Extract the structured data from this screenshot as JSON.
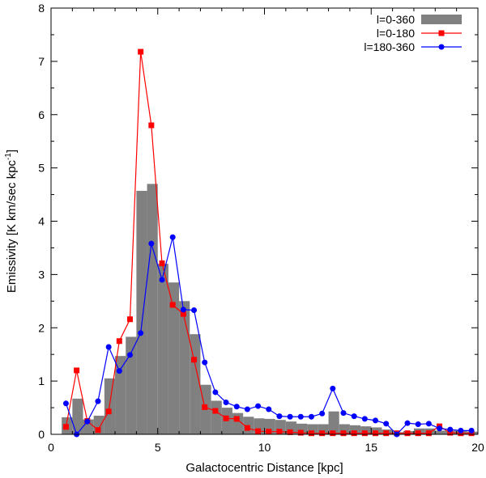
{
  "chart_data": {
    "type": "bar",
    "title": "",
    "xlabel": "Galactocentric Distance [kpc]",
    "ylabel_parts": {
      "main": "Emissivity [K km/sec kpc",
      "sup": "-1",
      "end": "]"
    },
    "xlim": [
      0,
      20
    ],
    "ylim": [
      0,
      8
    ],
    "x_ticks": [
      "0",
      "5",
      "10",
      "15",
      "20"
    ],
    "y_ticks": [
      "0",
      "1",
      "2",
      "3",
      "4",
      "5",
      "6",
      "7",
      "8"
    ],
    "grid": false,
    "legend_position": "top-right",
    "bin_width": 0.5,
    "series": [
      {
        "name": "l=0-360",
        "kind": "histogram",
        "color": "#808080",
        "x": [
          0.5,
          1.0,
          1.5,
          2.0,
          2.5,
          3.0,
          3.5,
          4.0,
          4.5,
          5.0,
          5.5,
          6.0,
          6.5,
          7.0,
          7.5,
          8.0,
          8.5,
          9.0,
          9.5,
          10.0,
          10.5,
          11.0,
          11.5,
          12.0,
          12.5,
          13.0,
          13.5,
          14.0,
          14.5,
          15.0,
          15.5,
          16.0,
          16.5,
          17.0,
          17.5,
          18.0,
          18.5,
          19.0,
          19.5
        ],
        "values": [
          0.32,
          0.67,
          0.28,
          0.35,
          1.05,
          1.47,
          1.83,
          4.57,
          4.7,
          3.2,
          2.85,
          2.5,
          1.88,
          0.93,
          0.63,
          0.5,
          0.4,
          0.33,
          0.3,
          0.29,
          0.27,
          0.24,
          0.2,
          0.19,
          0.19,
          0.43,
          0.19,
          0.17,
          0.15,
          0.13,
          0.09,
          0.04,
          0.06,
          0.11,
          0.11,
          0.07,
          0.07,
          0.07,
          0.05
        ]
      },
      {
        "name": "l=0-180",
        "kind": "line",
        "marker": "square",
        "color": "#ff0000",
        "x": [
          0.7,
          1.2,
          1.7,
          2.2,
          2.7,
          3.2,
          3.7,
          4.2,
          4.7,
          5.2,
          5.7,
          6.2,
          6.7,
          7.2,
          7.7,
          8.2,
          8.7,
          9.2,
          9.7,
          10.2,
          10.7,
          11.2,
          11.7,
          12.2,
          12.7,
          13.2,
          13.7,
          14.2,
          14.7,
          15.2,
          15.7,
          16.2,
          16.7,
          17.2,
          17.7,
          18.2,
          18.7,
          19.2,
          19.7
        ],
        "values": [
          0.14,
          1.2,
          0.25,
          0.08,
          0.43,
          1.75,
          2.16,
          7.18,
          5.8,
          3.21,
          2.43,
          2.26,
          1.4,
          0.51,
          0.44,
          0.3,
          0.29,
          0.12,
          0.06,
          0.05,
          0.05,
          0.04,
          0.03,
          0.02,
          0.02,
          0.02,
          0.02,
          0.02,
          0.02,
          0.02,
          0.02,
          0.02,
          0.02,
          0.02,
          0.02,
          0.15,
          0.03,
          0.02,
          0.02
        ]
      },
      {
        "name": "l=180-360",
        "kind": "line",
        "marker": "circle",
        "color": "#0000ff",
        "x": [
          0.7,
          1.2,
          1.7,
          2.2,
          2.7,
          3.2,
          3.7,
          4.2,
          4.7,
          5.2,
          5.7,
          6.2,
          6.7,
          7.2,
          7.7,
          8.2,
          8.7,
          9.2,
          9.7,
          10.2,
          10.7,
          11.2,
          11.7,
          12.2,
          12.7,
          13.2,
          13.7,
          14.2,
          14.7,
          15.2,
          15.7,
          16.2,
          16.7,
          17.2,
          17.7,
          18.2,
          18.7,
          19.2,
          19.7
        ],
        "values": [
          0.58,
          0.0,
          0.24,
          0.62,
          1.64,
          1.19,
          1.49,
          1.9,
          3.58,
          2.9,
          3.7,
          2.34,
          2.33,
          1.35,
          0.79,
          0.6,
          0.52,
          0.47,
          0.53,
          0.47,
          0.34,
          0.33,
          0.33,
          0.33,
          0.39,
          0.86,
          0.4,
          0.34,
          0.29,
          0.26,
          0.2,
          0.0,
          0.21,
          0.19,
          0.2,
          0.11,
          0.09,
          0.07,
          0.07
        ]
      }
    ]
  }
}
